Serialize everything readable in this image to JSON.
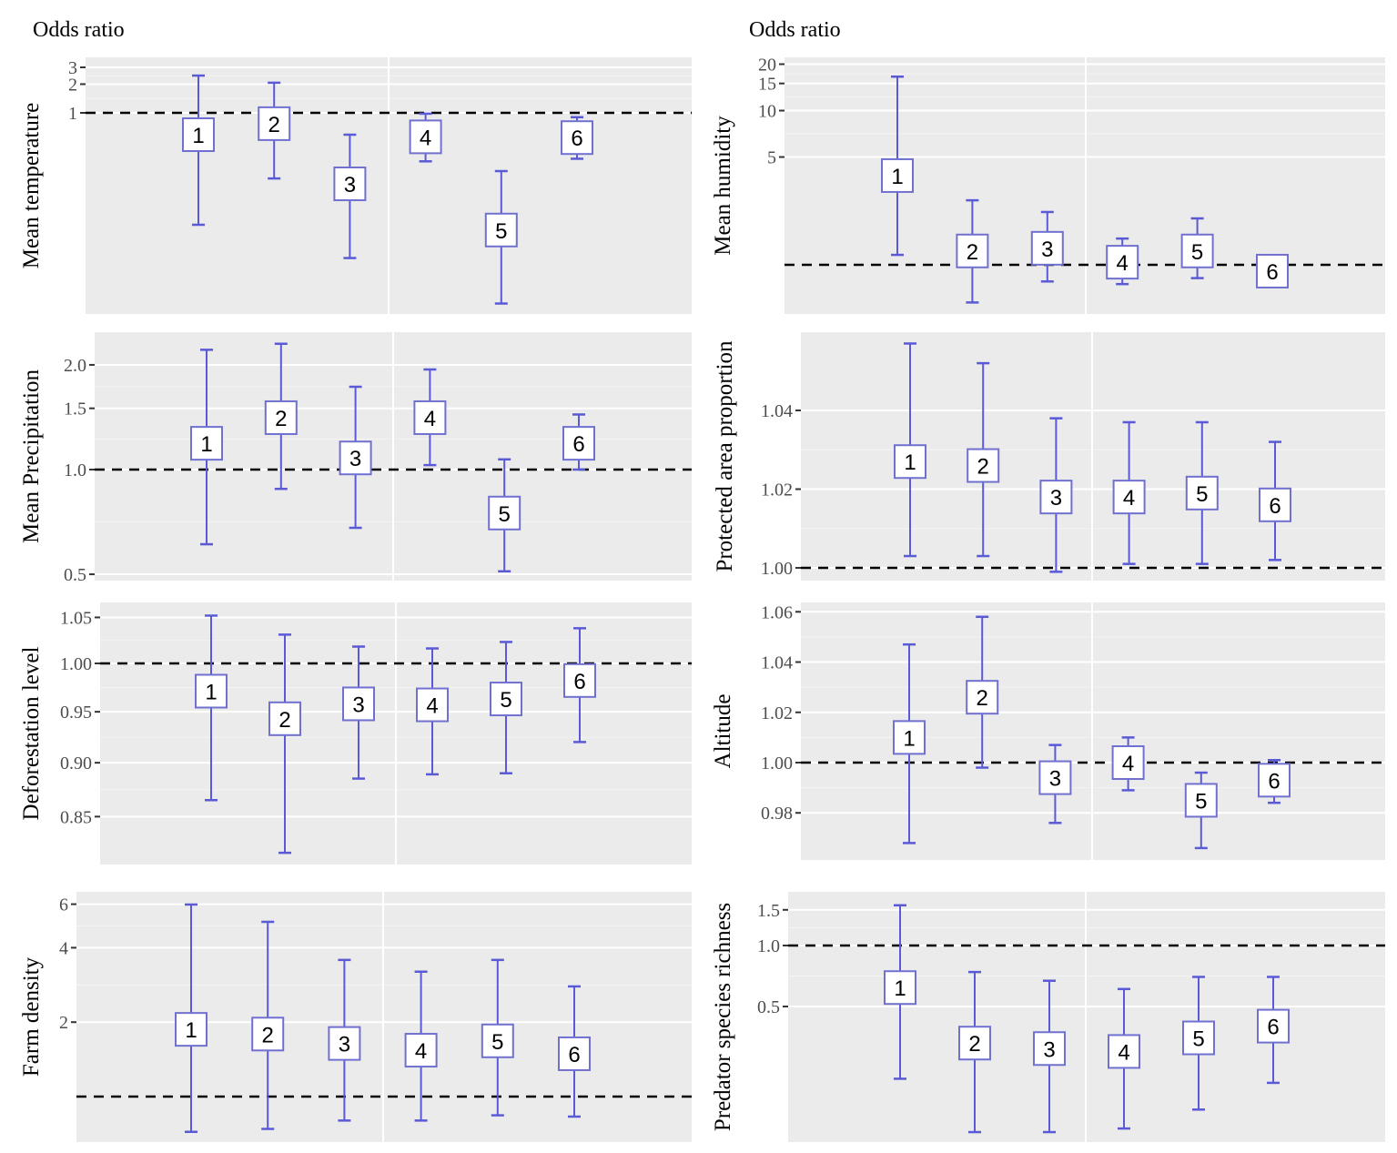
{
  "headers": {
    "left": "Odds ratio",
    "right": "Odds ratio"
  },
  "colors": {
    "panel_bg": "#ebebeb",
    "grid": "#ffffff",
    "whisker": "#5a5ad6",
    "box_stroke": "#7070d0",
    "reference_line": "#000000"
  },
  "chart_data": [
    {
      "type": "errorbar",
      "scale": "log",
      "ylabel": "Mean temperature",
      "reference_line": 1,
      "ticks": [
        {
          "value": 3,
          "label": "3"
        },
        {
          "value": 2,
          "label": "2"
        },
        {
          "value": 1,
          "label": "1"
        }
      ],
      "groups": [
        {
          "label": "1",
          "estimate": 0.59,
          "lower": 0.067,
          "upper": 2.46
        },
        {
          "label": "2",
          "estimate": 0.77,
          "lower": 0.205,
          "upper": 2.07
        },
        {
          "label": "3",
          "estimate": 0.18,
          "lower": 0.03,
          "upper": 0.59
        },
        {
          "label": "4",
          "estimate": 0.56,
          "lower": 0.31,
          "upper": 0.98
        },
        {
          "label": "5",
          "estimate": 0.059,
          "lower": 0.01,
          "upper": 0.245
        },
        {
          "label": "6",
          "estimate": 0.55,
          "lower": 0.33,
          "upper": 0.9
        }
      ]
    },
    {
      "type": "errorbar",
      "scale": "log",
      "ylabel": "Mean humidity",
      "reference_line": 1,
      "ticks": [
        {
          "value": 20,
          "label": "20"
        },
        {
          "value": 15,
          "label": "15"
        },
        {
          "value": 10,
          "label": "10"
        },
        {
          "value": 5,
          "label": "5"
        }
      ],
      "groups": [
        {
          "label": "1",
          "estimate": 3.79,
          "lower": 1.16,
          "upper": 16.6
        },
        {
          "label": "2",
          "estimate": 1.23,
          "lower": 0.57,
          "upper": 2.62
        },
        {
          "label": "3",
          "estimate": 1.28,
          "lower": 0.78,
          "upper": 2.2
        },
        {
          "label": "4",
          "estimate": 1.04,
          "lower": 0.75,
          "upper": 1.48
        },
        {
          "label": "5",
          "estimate": 1.23,
          "lower": 0.82,
          "upper": 2.0
        },
        {
          "label": "6",
          "estimate": 0.91,
          "lower": 0.85,
          "upper": 0.98
        }
      ]
    },
    {
      "type": "errorbar",
      "scale": "log",
      "ylabel": "Mean Precipitation",
      "reference_line": 1,
      "ticks": [
        {
          "value": 2.0,
          "label": "2.0"
        },
        {
          "value": 1.5,
          "label": "1.5"
        },
        {
          "value": 1.0,
          "label": "1.0"
        },
        {
          "value": 0.5,
          "label": "0.5"
        }
      ],
      "groups": [
        {
          "label": "1",
          "estimate": 1.19,
          "lower": 0.61,
          "upper": 2.21
        },
        {
          "label": "2",
          "estimate": 1.41,
          "lower": 0.88,
          "upper": 2.3
        },
        {
          "label": "3",
          "estimate": 1.08,
          "lower": 0.68,
          "upper": 1.73
        },
        {
          "label": "4",
          "estimate": 1.41,
          "lower": 1.03,
          "upper": 1.94
        },
        {
          "label": "5",
          "estimate": 0.75,
          "lower": 0.51,
          "upper": 1.07
        },
        {
          "label": "6",
          "estimate": 1.19,
          "lower": 1.0,
          "upper": 1.44
        }
      ]
    },
    {
      "type": "errorbar",
      "scale": "linear",
      "ylabel": "Protected area proportion",
      "reference_line": 1,
      "ticks": [
        {
          "value": 1.04,
          "label": "1.04"
        },
        {
          "value": 1.02,
          "label": "1.02"
        },
        {
          "value": 1.0,
          "label": "1.00"
        }
      ],
      "groups": [
        {
          "label": "1",
          "estimate": 1.027,
          "lower": 1.003,
          "upper": 1.057
        },
        {
          "label": "2",
          "estimate": 1.026,
          "lower": 1.003,
          "upper": 1.052
        },
        {
          "label": "3",
          "estimate": 1.018,
          "lower": 0.999,
          "upper": 1.038
        },
        {
          "label": "4",
          "estimate": 1.018,
          "lower": 1.001,
          "upper": 1.037
        },
        {
          "label": "5",
          "estimate": 1.019,
          "lower": 1.001,
          "upper": 1.037
        },
        {
          "label": "6",
          "estimate": 1.016,
          "lower": 1.002,
          "upper": 1.032
        }
      ]
    },
    {
      "type": "errorbar",
      "scale": "log",
      "ylabel": "Deforestation level",
      "reference_line": 1,
      "ticks": [
        {
          "value": 1.05,
          "label": "1.05"
        },
        {
          "value": 1.0,
          "label": "1.00"
        },
        {
          "value": 0.95,
          "label": "0.95"
        },
        {
          "value": 0.9,
          "label": "0.90"
        },
        {
          "value": 0.85,
          "label": "0.85"
        }
      ],
      "groups": [
        {
          "label": "1",
          "estimate": 0.971,
          "lower": 0.865,
          "upper": 1.052
        },
        {
          "label": "2",
          "estimate": 0.943,
          "lower": 0.818,
          "upper": 1.031
        },
        {
          "label": "3",
          "estimate": 0.958,
          "lower": 0.885,
          "upper": 1.018
        },
        {
          "label": "4",
          "estimate": 0.957,
          "lower": 0.889,
          "upper": 1.016
        },
        {
          "label": "5",
          "estimate": 0.963,
          "lower": 0.89,
          "upper": 1.023
        },
        {
          "label": "6",
          "estimate": 0.982,
          "lower": 0.92,
          "upper": 1.038
        }
      ]
    },
    {
      "type": "errorbar",
      "scale": "linear",
      "ylabel": "Altitude",
      "reference_line": 1,
      "ticks": [
        {
          "value": 1.06,
          "label": "1.06"
        },
        {
          "value": 1.04,
          "label": "1.04"
        },
        {
          "value": 1.02,
          "label": "1.02"
        },
        {
          "value": 1.0,
          "label": "1.00"
        },
        {
          "value": 0.98,
          "label": "0.98"
        }
      ],
      "groups": [
        {
          "label": "1",
          "estimate": 1.01,
          "lower": 0.968,
          "upper": 1.047
        },
        {
          "label": "2",
          "estimate": 1.026,
          "lower": 0.998,
          "upper": 1.058
        },
        {
          "label": "3",
          "estimate": 0.994,
          "lower": 0.976,
          "upper": 1.007
        },
        {
          "label": "4",
          "estimate": 1.0,
          "lower": 0.989,
          "upper": 1.01
        },
        {
          "label": "5",
          "estimate": 0.985,
          "lower": 0.966,
          "upper": 0.996
        },
        {
          "label": "6",
          "estimate": 0.993,
          "lower": 0.984,
          "upper": 1.001
        }
      ]
    },
    {
      "type": "errorbar",
      "scale": "log",
      "ylabel": "Farm density",
      "reference_line": 1,
      "ticks": [
        {
          "value": 6,
          "label": "6"
        },
        {
          "value": 4,
          "label": "4"
        },
        {
          "value": 2,
          "label": "2"
        }
      ],
      "groups": [
        {
          "label": "1",
          "estimate": 1.87,
          "lower": 0.72,
          "upper": 5.98
        },
        {
          "label": "2",
          "estimate": 1.79,
          "lower": 0.74,
          "upper": 5.09
        },
        {
          "label": "3",
          "estimate": 1.64,
          "lower": 0.8,
          "upper": 3.57
        },
        {
          "label": "4",
          "estimate": 1.54,
          "lower": 0.8,
          "upper": 3.2
        },
        {
          "label": "5",
          "estimate": 1.68,
          "lower": 0.84,
          "upper": 3.57
        },
        {
          "label": "6",
          "estimate": 1.49,
          "lower": 0.83,
          "upper": 2.79
        }
      ]
    },
    {
      "type": "errorbar",
      "scale": "log",
      "ylabel": "Predator species richness",
      "reference_line": 1,
      "ticks": [
        {
          "value": 1.5,
          "label": "1.5"
        },
        {
          "value": 1.0,
          "label": "1.0"
        },
        {
          "value": 0.5,
          "label": "0.5"
        }
      ],
      "groups": [
        {
          "label": "1",
          "estimate": 0.62,
          "lower": 0.22,
          "upper": 1.58
        },
        {
          "label": "2",
          "estimate": 0.33,
          "lower": 0.12,
          "upper": 0.74
        },
        {
          "label": "3",
          "estimate": 0.31,
          "lower": 0.12,
          "upper": 0.67
        },
        {
          "label": "4",
          "estimate": 0.3,
          "lower": 0.125,
          "upper": 0.61
        },
        {
          "label": "5",
          "estimate": 0.35,
          "lower": 0.155,
          "upper": 0.7
        },
        {
          "label": "6",
          "estimate": 0.4,
          "lower": 0.21,
          "upper": 0.7
        }
      ]
    }
  ]
}
